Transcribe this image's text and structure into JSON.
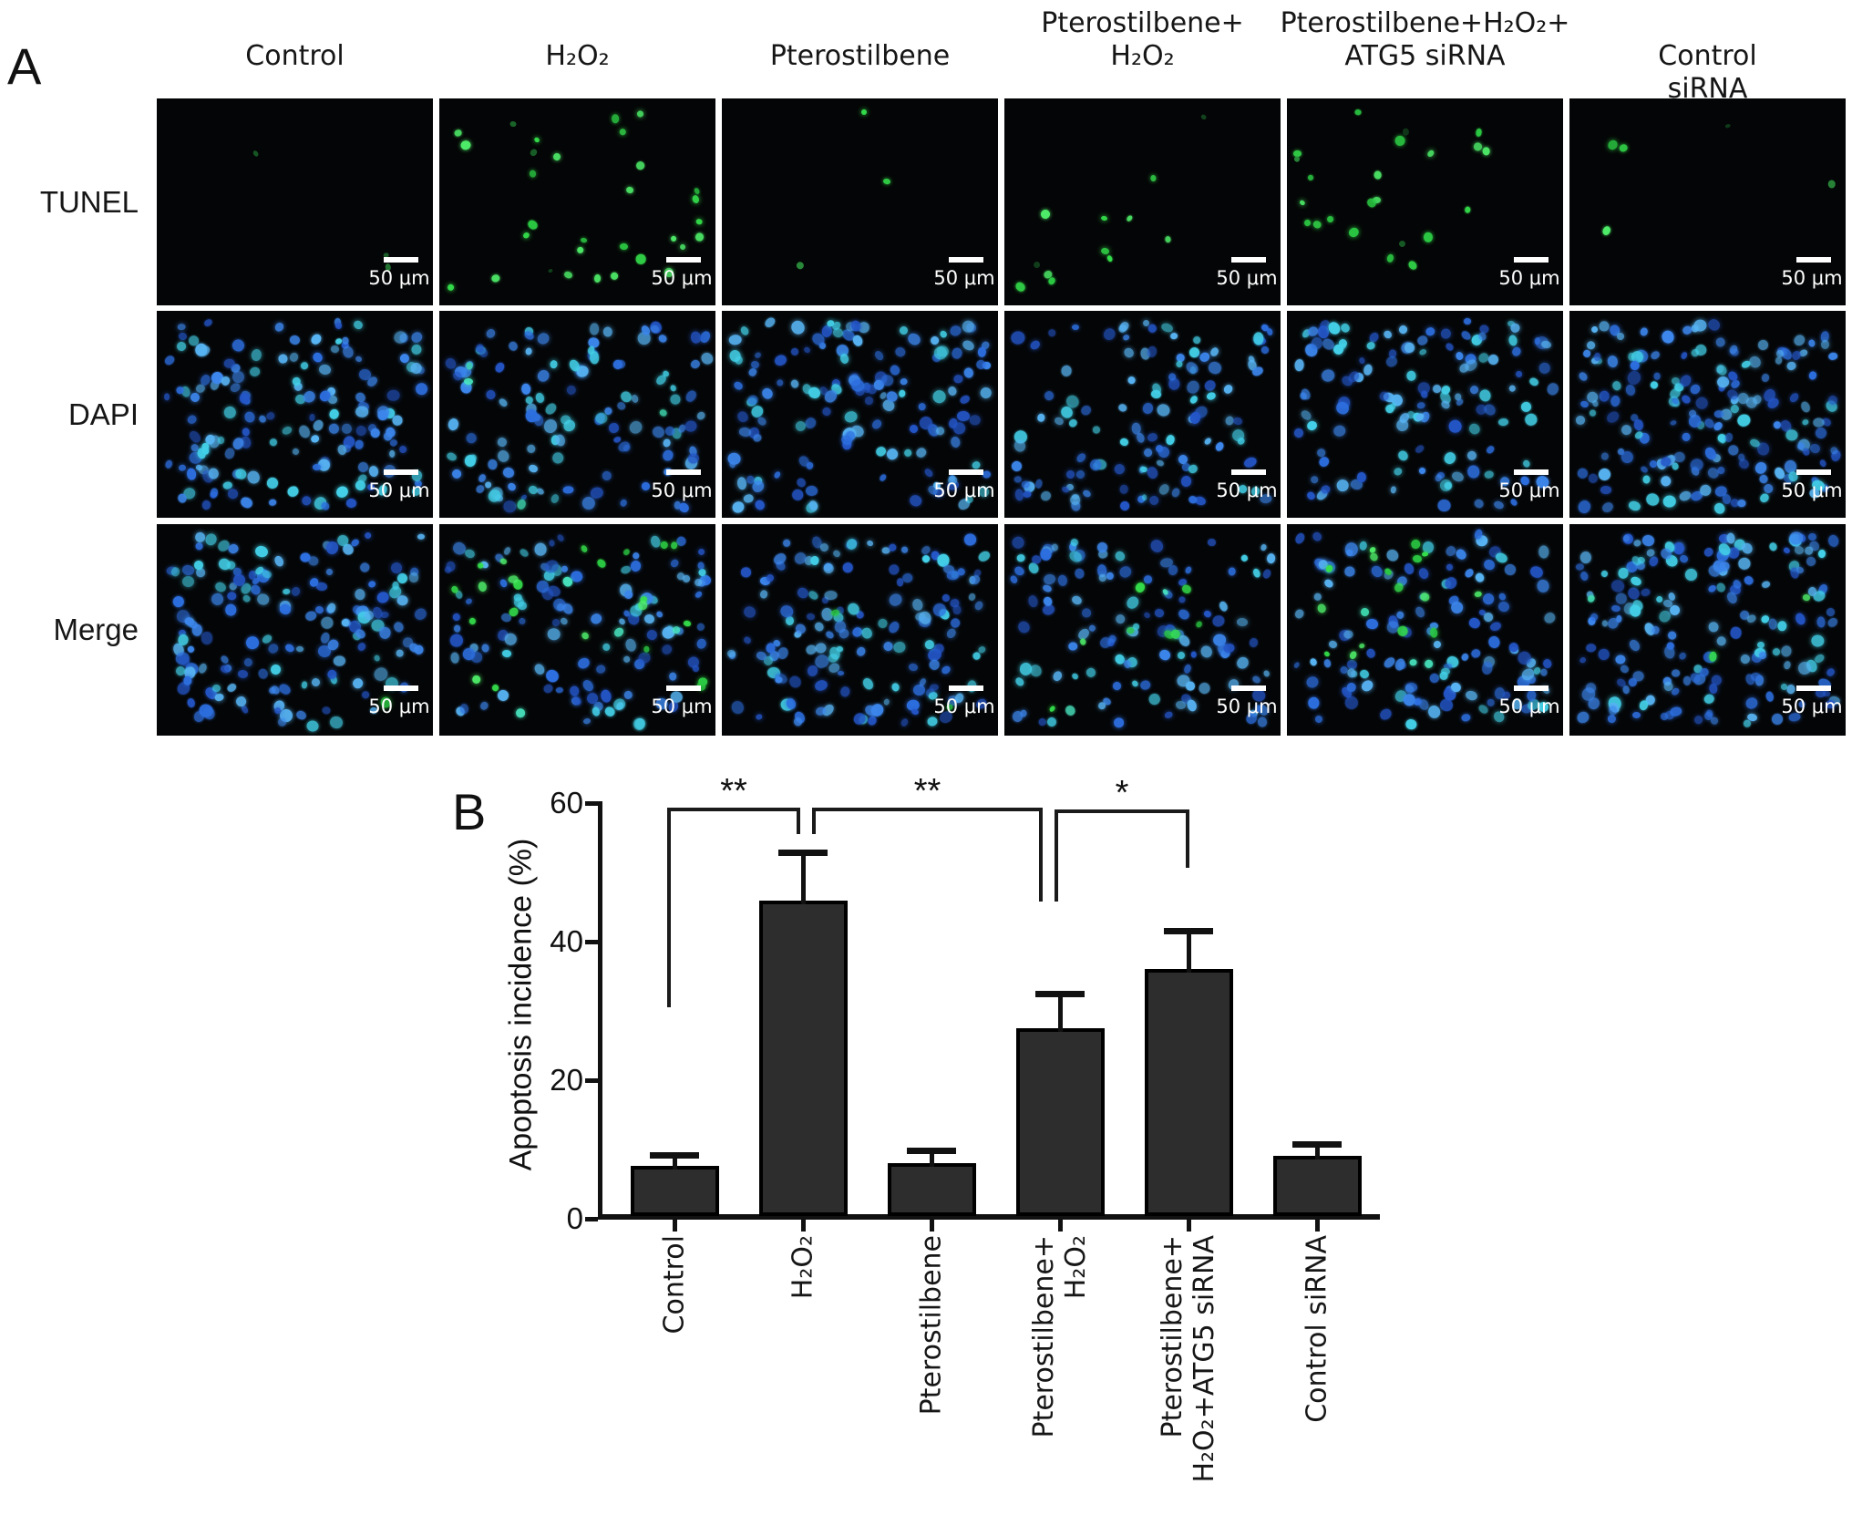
{
  "figure": {
    "panel_a": {
      "label": "A",
      "row_labels": [
        "TUNEL",
        "DAPI",
        "Merge"
      ],
      "column_headers": [
        "Control",
        "H₂O₂",
        "Pterostilbene",
        "Pterostilbene+\nH₂O₂",
        "Pterostilbene+H₂O₂+\nATG5 siRNA",
        "Control siRNA"
      ],
      "scale_bar_label": "50 μm",
      "colors": {
        "panel_background": "#040506",
        "divider": "#ffffff",
        "tunel_green": [
          "#35e14c",
          "#2bc943",
          "#4ff06a"
        ],
        "tunel_green_dim": [
          "#1c6e2d",
          "#2a8f3c"
        ],
        "dapi_blue": [
          "#2d6fe0",
          "#3c86ec",
          "#57b3f2",
          "#2456c8",
          "#43d0e8"
        ],
        "merge_teal": [
          "#3fd9b0",
          "#49e8c2"
        ],
        "scale_bar": "#ffffff"
      },
      "panels": [
        {
          "name": "tunel-control",
          "row": 0,
          "col": 0,
          "seed": 11,
          "blue": 0,
          "green": 0,
          "dim_green": 3,
          "teal": 0,
          "bias": "none"
        },
        {
          "name": "tunel-h2o2",
          "row": 0,
          "col": 1,
          "seed": 22,
          "blue": 0,
          "green": 28,
          "dim_green": 3,
          "teal": 0,
          "bias": "none"
        },
        {
          "name": "tunel-pterostilbene",
          "row": 0,
          "col": 2,
          "seed": 33,
          "blue": 0,
          "green": 2,
          "dim_green": 1,
          "teal": 0,
          "bias": "none"
        },
        {
          "name": "tunel-pt-h2o2",
          "row": 0,
          "col": 3,
          "seed": 44,
          "blue": 0,
          "green": 10,
          "dim_green": 2,
          "teal": 0,
          "bias": "lower-left"
        },
        {
          "name": "tunel-pt-h2o2-atg5",
          "row": 0,
          "col": 4,
          "seed": 55,
          "blue": 0,
          "green": 20,
          "dim_green": 3,
          "teal": 0,
          "bias": "upper-left"
        },
        {
          "name": "tunel-control-sirna",
          "row": 0,
          "col": 5,
          "seed": 66,
          "blue": 0,
          "green": 3,
          "dim_green": 2,
          "teal": 0,
          "bias": "none"
        },
        {
          "name": "dapi-control",
          "row": 1,
          "col": 0,
          "seed": 17,
          "blue": 150,
          "green": 0,
          "dim_green": 0,
          "teal": 0,
          "bias": "none"
        },
        {
          "name": "dapi-h2o2",
          "row": 1,
          "col": 1,
          "seed": 27,
          "blue": 115,
          "green": 0,
          "dim_green": 0,
          "teal": 4,
          "bias": "none"
        },
        {
          "name": "dapi-pterostilbene",
          "row": 1,
          "col": 2,
          "seed": 37,
          "blue": 140,
          "green": 0,
          "dim_green": 0,
          "teal": 0,
          "bias": "none"
        },
        {
          "name": "dapi-pt-h2o2",
          "row": 1,
          "col": 3,
          "seed": 47,
          "blue": 115,
          "green": 0,
          "dim_green": 0,
          "teal": 0,
          "bias": "none"
        },
        {
          "name": "dapi-pt-h2o2-atg5",
          "row": 1,
          "col": 4,
          "seed": 57,
          "blue": 125,
          "green": 0,
          "dim_green": 0,
          "teal": 0,
          "bias": "none"
        },
        {
          "name": "dapi-control-sirna",
          "row": 1,
          "col": 5,
          "seed": 67,
          "blue": 170,
          "green": 0,
          "dim_green": 0,
          "teal": 0,
          "bias": "none"
        },
        {
          "name": "merge-control",
          "row": 2,
          "col": 0,
          "seed": 19,
          "blue": 150,
          "green": 1,
          "dim_green": 0,
          "teal": 0,
          "bias": "none"
        },
        {
          "name": "merge-h2o2",
          "row": 2,
          "col": 1,
          "seed": 29,
          "blue": 115,
          "green": 22,
          "dim_green": 0,
          "teal": 4,
          "bias": "none"
        },
        {
          "name": "merge-pterostilbene",
          "row": 2,
          "col": 2,
          "seed": 39,
          "blue": 140,
          "green": 2,
          "dim_green": 0,
          "teal": 0,
          "bias": "none"
        },
        {
          "name": "merge-pt-h2o2",
          "row": 2,
          "col": 3,
          "seed": 49,
          "blue": 115,
          "green": 8,
          "dim_green": 0,
          "teal": 2,
          "bias": "lower-left"
        },
        {
          "name": "merge-pt-h2o2-atg5",
          "row": 2,
          "col": 4,
          "seed": 59,
          "blue": 125,
          "green": 16,
          "dim_green": 0,
          "teal": 3,
          "bias": "upper-left"
        },
        {
          "name": "merge-control-sirna",
          "row": 2,
          "col": 5,
          "seed": 69,
          "blue": 170,
          "green": 2,
          "dim_green": 0,
          "teal": 1,
          "bias": "none"
        }
      ]
    },
    "panel_b": {
      "label": "B"
    }
  },
  "chart_data": {
    "type": "bar",
    "title": "",
    "xlabel": "",
    "ylabel": "Apoptosis incidence (%)",
    "ylim": [
      0,
      60
    ],
    "yticks": [
      0,
      20,
      40,
      60
    ],
    "grid": false,
    "legend": "none",
    "categories": [
      "Control",
      "H₂O₂",
      "Pterostilbene",
      "Pterostilbene+\nH₂O₂",
      "Pterostilbene+\nH₂O₂+ATG5 siRNA",
      "Control siRNA"
    ],
    "values": [
      7.6,
      45.9,
      8.0,
      27.5,
      36.1,
      9.1
    ],
    "errors_plus": [
      1.6,
      7.0,
      1.9,
      5.0,
      5.5,
      1.7
    ],
    "bar_color": "#2d2d2d",
    "bar_border_color": "#000000",
    "significance": [
      {
        "label": "**",
        "between": [
          0,
          1
        ]
      },
      {
        "label": "**",
        "between": [
          1,
          3
        ]
      },
      {
        "label": "*",
        "between": [
          3,
          4
        ]
      }
    ]
  }
}
